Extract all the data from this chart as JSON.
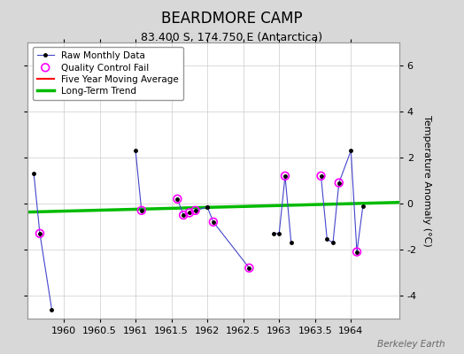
{
  "title": "BEARDMORE CAMP",
  "subtitle": "83.400 S, 174.750 E (Antarctica)",
  "ylabel": "Temperature Anomaly (°C)",
  "credit": "Berkeley Earth",
  "background_color": "#d8d8d8",
  "plot_bg_color": "#ffffff",
  "ylim": [
    -5.0,
    7.0
  ],
  "xlim": [
    1959.5,
    1964.67
  ],
  "yticks": [
    -4,
    -2,
    0,
    2,
    4,
    6
  ],
  "xticks": [
    1960,
    1960.5,
    1961,
    1961.5,
    1962,
    1962.5,
    1963,
    1963.5,
    1964
  ],
  "raw_segments": [
    {
      "x": [
        1959.583,
        1959.667,
        1959.833
      ],
      "y": [
        1.3,
        -1.3,
        -4.6
      ]
    },
    {
      "x": [
        1961.0,
        1961.083
      ],
      "y": [
        2.3,
        -0.3
      ]
    },
    {
      "x": [
        1961.583,
        1961.667,
        1961.75,
        1961.833,
        1962.0
      ],
      "y": [
        0.2,
        -0.5,
        -0.4,
        -0.3,
        -0.15
      ]
    },
    {
      "x": [
        1962.0,
        1962.083,
        1962.583
      ],
      "y": [
        -0.15,
        -0.8,
        -2.8
      ]
    },
    {
      "x": [
        1962.917,
        1963.0,
        1963.083,
        1963.167
      ],
      "y": [
        -1.3,
        -1.3,
        1.2,
        -1.7
      ]
    },
    {
      "x": [
        1963.583,
        1963.667,
        1963.75,
        1963.833,
        1964.0,
        1964.083,
        1964.167
      ],
      "y": [
        1.2,
        -1.55,
        -1.7,
        0.9,
        2.3,
        -2.1,
        -0.1
      ]
    }
  ],
  "qc_fail_x": [
    1959.667,
    1961.083,
    1961.583,
    1961.667,
    1961.75,
    1961.833,
    1962.083,
    1962.583,
    1963.083,
    1963.583,
    1963.833,
    1964.083
  ],
  "qc_fail_y": [
    -1.3,
    -0.3,
    0.2,
    -0.5,
    -0.4,
    -0.3,
    -0.8,
    -2.8,
    1.2,
    1.2,
    0.9,
    -2.1
  ],
  "trend_x": [
    1959.5,
    1964.67
  ],
  "trend_y": [
    -0.37,
    0.05
  ],
  "raw_color": "#4444cc",
  "raw_marker_color": "#000000",
  "qc_color": "#ff00ff",
  "trend_color": "#00bb00",
  "moving_avg_color": "#ff0000",
  "grid_color": "#cccccc",
  "title_fontsize": 12,
  "subtitle_fontsize": 9,
  "label_fontsize": 8,
  "tick_fontsize": 8
}
